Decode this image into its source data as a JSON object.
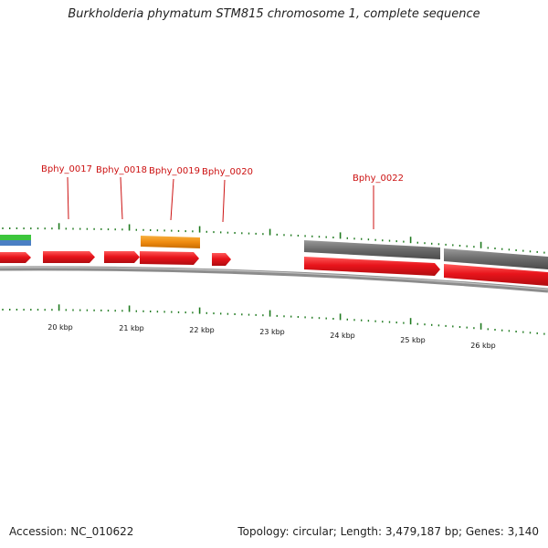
{
  "title": "Burkholderia phymatum STM815 chromosome 1, complete sequence",
  "footer": {
    "accession": "Accession: NC_010622",
    "summary": "Topology: circular; Length: 3,479,187 bp; Genes: 3,140"
  },
  "gene_labels": [
    "Bphy_0017",
    "Bphy_0018",
    "Bphy_0019",
    "Bphy_0020",
    "Bphy_0022"
  ],
  "ruler_labels": [
    "20 kbp",
    "21 kbp",
    "22 kbp",
    "23 kbp",
    "24 kbp",
    "25 kbp",
    "26 kbp"
  ],
  "colors": {
    "cds": "#e8141b",
    "gene": "#6a6a6a",
    "orange_feature": "#f08c10",
    "green_feature": "#3cc63c",
    "blue_feature": "#4a7fc4",
    "tick": "#1f7a1f",
    "label": "#cc1111",
    "backbone": "#8c8c8c"
  }
}
